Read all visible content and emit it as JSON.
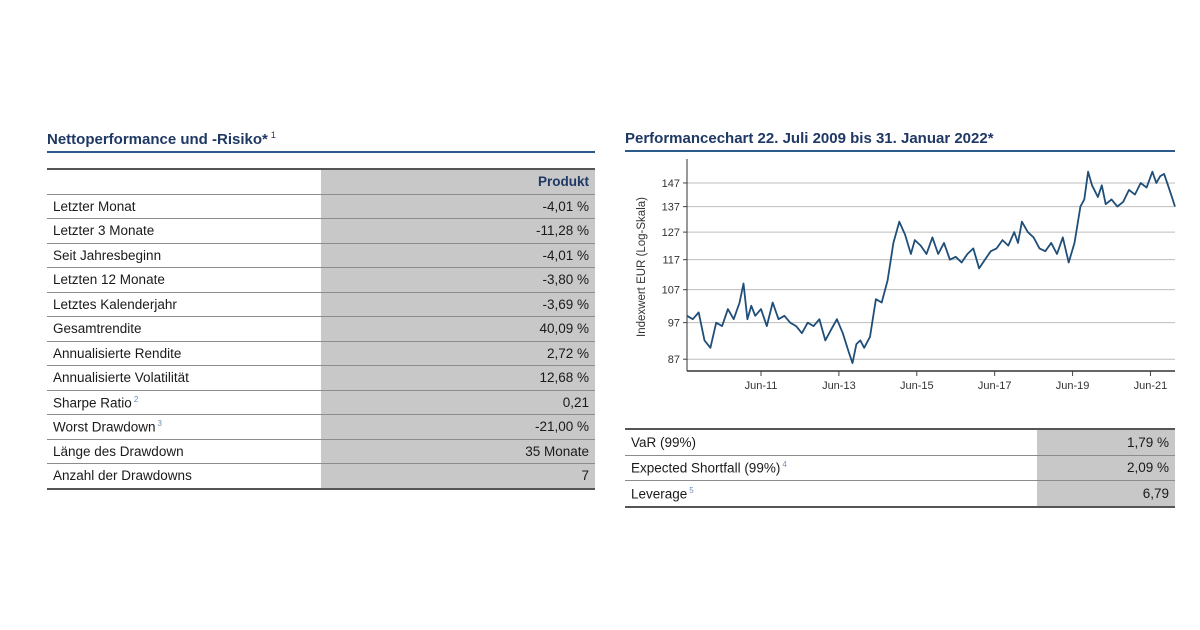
{
  "left": {
    "title": "Nettoperformance und -Risiko*",
    "title_sup": "1",
    "column_header": "Produkt",
    "rows": [
      {
        "label": "Letzter Monat",
        "sup": "",
        "value": "-4,01 %"
      },
      {
        "label": "Letzter 3 Monate",
        "sup": "",
        "value": "-11,28 %"
      },
      {
        "label": "Seit Jahresbeginn",
        "sup": "",
        "value": "-4,01 %"
      },
      {
        "label": "Letzten 12 Monate",
        "sup": "",
        "value": "-3,80 %"
      },
      {
        "label": "Letztes Kalenderjahr",
        "sup": "",
        "value": "-3,69 %"
      },
      {
        "label": "Gesamtrendite",
        "sup": "",
        "value": "40,09 %"
      },
      {
        "label": "Annualisierte Rendite",
        "sup": "",
        "value": "2,72 %"
      },
      {
        "label": "Annualisierte Volatilität",
        "sup": "",
        "value": "12,68 %"
      },
      {
        "label": "Sharpe Ratio",
        "sup": "2",
        "value": "0,21"
      },
      {
        "label": "Worst Drawdown",
        "sup": "3",
        "value": "-21,00 %"
      },
      {
        "label": "Länge des Drawdown",
        "sup": "",
        "value": "35 Monate"
      },
      {
        "label": "Anzahl der Drawdowns",
        "sup": "",
        "value": "7"
      }
    ]
  },
  "right": {
    "title": "Performancechart 22. Juli 2009 bis 31. Januar 2022*",
    "risk_rows": [
      {
        "label": "VaR (99%)",
        "sup": "",
        "value": "1,79 %"
      },
      {
        "label": "Expected Shortfall (99%)",
        "sup": "4",
        "value": "2,09 %"
      },
      {
        "label": "Leverage",
        "sup": "5",
        "value": "6,79"
      }
    ]
  },
  "chart_data": {
    "type": "line",
    "ylabel": "Indexwert EUR (Log-Skala)",
    "yscale": "log",
    "yticks": [
      87,
      97,
      107,
      117,
      127,
      137,
      147
    ],
    "ylim": [
      84,
      156
    ],
    "xlim": [
      2009.55,
      2022.08
    ],
    "xticks": [
      2011.45,
      2013.45,
      2015.45,
      2017.45,
      2019.45,
      2021.45
    ],
    "xtick_labels": [
      "Jun-11",
      "Jun-13",
      "Jun-15",
      "Jun-17",
      "Jun-19",
      "Jun-21"
    ],
    "grid": "horizontal",
    "color": "#1f4e79",
    "series": [
      {
        "name": "",
        "x": [
          2009.55,
          2009.7,
          2009.85,
          2010.0,
          2010.15,
          2010.3,
          2010.45,
          2010.6,
          2010.75,
          2010.9,
          2011.0,
          2011.1,
          2011.2,
          2011.3,
          2011.45,
          2011.6,
          2011.75,
          2011.9,
          2012.05,
          2012.2,
          2012.35,
          2012.5,
          2012.65,
          2012.8,
          2012.95,
          2013.1,
          2013.25,
          2013.4,
          2013.55,
          2013.7,
          2013.8,
          2013.9,
          2014.0,
          2014.1,
          2014.25,
          2014.4,
          2014.55,
          2014.7,
          2014.85,
          2015.0,
          2015.15,
          2015.3,
          2015.4,
          2015.55,
          2015.7,
          2015.85,
          2016.0,
          2016.15,
          2016.3,
          2016.45,
          2016.6,
          2016.75,
          2016.9,
          2017.05,
          2017.2,
          2017.35,
          2017.5,
          2017.65,
          2017.8,
          2017.95,
          2018.05,
          2018.15,
          2018.3,
          2018.45,
          2018.6,
          2018.75,
          2018.9,
          2019.05,
          2019.2,
          2019.35,
          2019.5,
          2019.65,
          2019.75,
          2019.85,
          2019.95,
          2020.1,
          2020.2,
          2020.3,
          2020.45,
          2020.6,
          2020.75,
          2020.9,
          2021.05,
          2021.2,
          2021.35,
          2021.5,
          2021.6,
          2021.7,
          2021.8,
          2021.9,
          2022.0,
          2022.08
        ],
        "y": [
          99,
          98,
          100,
          92,
          90,
          97,
          96,
          101,
          98,
          103,
          109,
          98,
          102,
          99,
          101,
          96,
          103,
          98,
          99,
          97,
          96,
          94,
          97,
          96,
          98,
          92,
          95,
          98,
          94,
          89,
          86,
          91,
          92,
          90,
          93,
          104,
          103,
          110,
          123,
          131,
          126,
          119,
          124,
          122,
          119,
          125,
          119,
          123,
          117,
          118,
          116,
          119,
          121,
          114,
          117,
          120,
          121,
          124,
          122,
          127,
          123,
          131,
          127,
          125,
          121,
          120,
          123,
          119,
          125,
          116,
          123,
          137,
          140,
          152,
          146,
          141,
          146,
          138,
          140,
          137,
          139,
          144,
          142,
          147,
          145,
          152,
          147,
          150,
          151,
          146,
          141,
          137
        ]
      }
    ]
  }
}
